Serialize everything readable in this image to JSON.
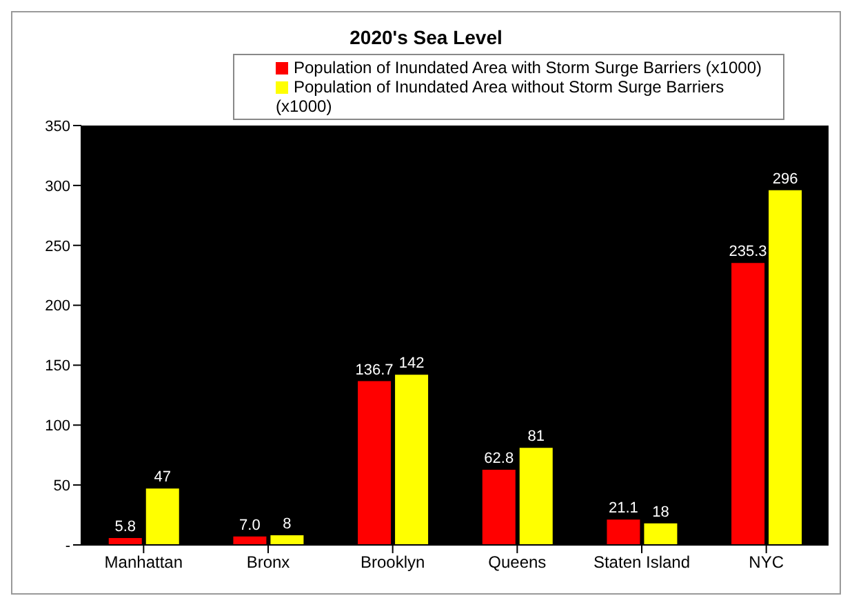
{
  "chart_data": {
    "type": "bar",
    "title": "2020's Sea Level",
    "categories": [
      "Manhattan",
      "Bronx",
      "Brooklyn",
      "Queens",
      "Staten Island",
      "NYC"
    ],
    "series": [
      {
        "name": "Population of Inundated Area with Storm Surge Barriers (x1000)",
        "color": "#ff0000",
        "values": [
          5.8,
          7.0,
          136.7,
          62.8,
          21.1,
          235.3
        ],
        "value_labels": [
          "5.8",
          "7.0",
          "136.7",
          "62.8",
          "21.1",
          "235.3"
        ]
      },
      {
        "name": "Population of Inundated Area without Storm Surge Barriers (x1000)",
        "color": "#ffff00",
        "values": [
          47,
          8,
          142,
          81,
          18,
          296
        ],
        "value_labels": [
          "47",
          "8",
          "142",
          "81",
          "18",
          "296"
        ]
      }
    ],
    "ylim": [
      0,
      350
    ],
    "yticks": [
      {
        "value": 0,
        "label": "-"
      },
      50,
      100,
      150,
      200,
      250,
      300,
      350
    ],
    "grid": false,
    "legend": "top"
  }
}
